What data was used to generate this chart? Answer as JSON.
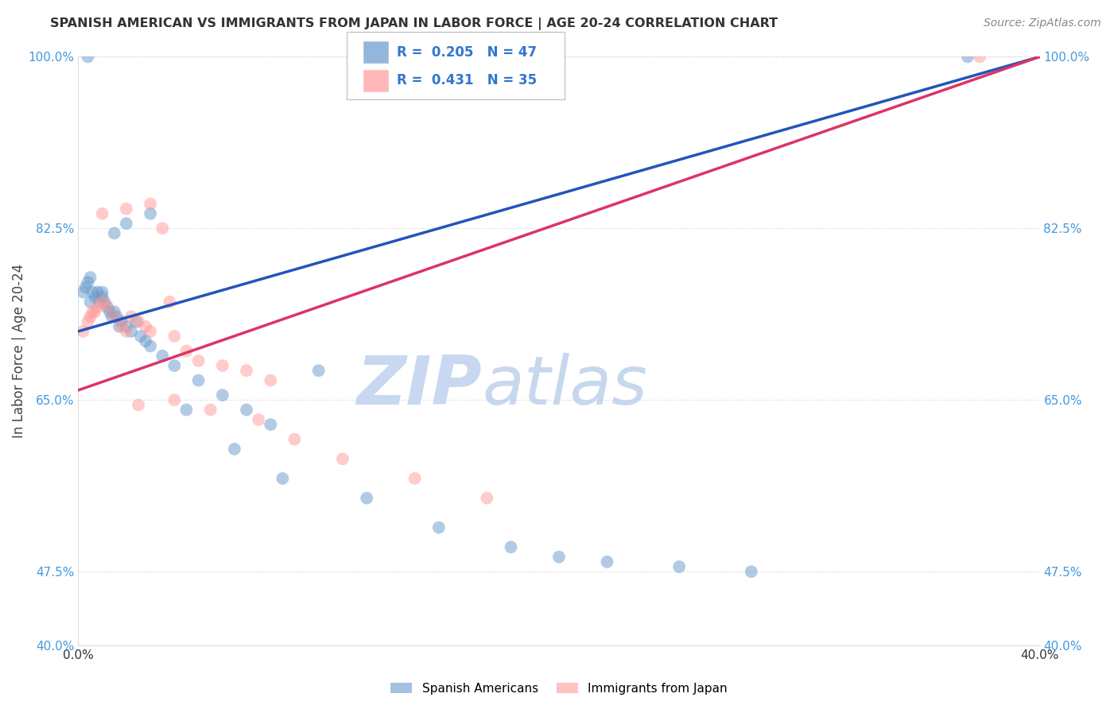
{
  "title": "SPANISH AMERICAN VS IMMIGRANTS FROM JAPAN IN LABOR FORCE | AGE 20-24 CORRELATION CHART",
  "source": "Source: ZipAtlas.com",
  "ylabel": "In Labor Force | Age 20-24",
  "xlabel": "",
  "xlim": [
    0.0,
    40.0
  ],
  "ylim": [
    40.0,
    100.0
  ],
  "xticks": [
    0.0,
    10.0,
    20.0,
    30.0,
    40.0
  ],
  "yticks": [
    40.0,
    47.5,
    65.0,
    82.5,
    100.0
  ],
  "ytick_labels": [
    "40.0%",
    "47.5%",
    "65.0%",
    "82.5%",
    "100.0%"
  ],
  "blue_color": "#6699CC",
  "pink_color": "#FF9999",
  "line_blue": "#2255BB",
  "line_pink": "#DD3366",
  "legend_R_blue": "R =  0.205",
  "legend_N_blue": "N = 47",
  "legend_R_pink": "R =  0.431",
  "legend_N_pink": "N = 35",
  "watermark_ZIP": "ZIP",
  "watermark_atlas": "atlas",
  "label_blue": "Spanish Americans",
  "label_pink": "Immigrants from Japan",
  "blue_x": [
    0.2,
    0.3,
    0.4,
    0.5,
    0.5,
    0.6,
    0.7,
    0.8,
    0.9,
    1.0,
    1.0,
    1.1,
    1.2,
    1.3,
    1.4,
    1.5,
    1.6,
    1.7,
    1.8,
    2.0,
    2.2,
    2.4,
    2.6,
    2.8,
    3.0,
    3.5,
    4.0,
    5.0,
    6.0,
    7.0,
    8.0,
    1.5,
    2.0,
    3.0,
    4.5,
    6.5,
    8.5,
    10.0,
    12.0,
    15.0,
    18.0,
    20.0,
    22.0,
    25.0,
    28.0,
    37.0,
    0.4
  ],
  "blue_y": [
    76.0,
    76.5,
    77.0,
    75.0,
    77.5,
    76.0,
    75.5,
    76.0,
    75.0,
    75.5,
    76.0,
    75.0,
    74.5,
    74.0,
    73.5,
    74.0,
    73.5,
    72.5,
    73.0,
    72.5,
    72.0,
    73.0,
    71.5,
    71.0,
    70.5,
    69.5,
    68.5,
    67.0,
    65.5,
    64.0,
    62.5,
    82.0,
    83.0,
    84.0,
    64.0,
    60.0,
    57.0,
    68.0,
    55.0,
    52.0,
    50.0,
    49.0,
    48.5,
    48.0,
    47.5,
    100.0,
    100.0
  ],
  "pink_x": [
    0.2,
    0.4,
    0.5,
    0.6,
    0.7,
    0.8,
    1.0,
    1.2,
    1.5,
    1.8,
    2.0,
    2.2,
    2.5,
    2.8,
    3.0,
    3.5,
    4.0,
    4.5,
    5.0,
    6.0,
    7.0,
    8.0,
    1.0,
    2.0,
    3.0,
    4.0,
    5.5,
    7.5,
    9.0,
    11.0,
    14.0,
    17.0,
    2.5,
    3.8,
    37.5
  ],
  "pink_y": [
    72.0,
    73.0,
    73.5,
    74.0,
    74.0,
    74.5,
    75.0,
    74.5,
    73.5,
    72.5,
    72.0,
    73.5,
    73.0,
    72.5,
    72.0,
    82.5,
    71.5,
    70.0,
    69.0,
    68.5,
    68.0,
    67.0,
    84.0,
    84.5,
    85.0,
    65.0,
    64.0,
    63.0,
    61.0,
    59.0,
    57.0,
    55.0,
    64.5,
    75.0,
    100.0
  ]
}
